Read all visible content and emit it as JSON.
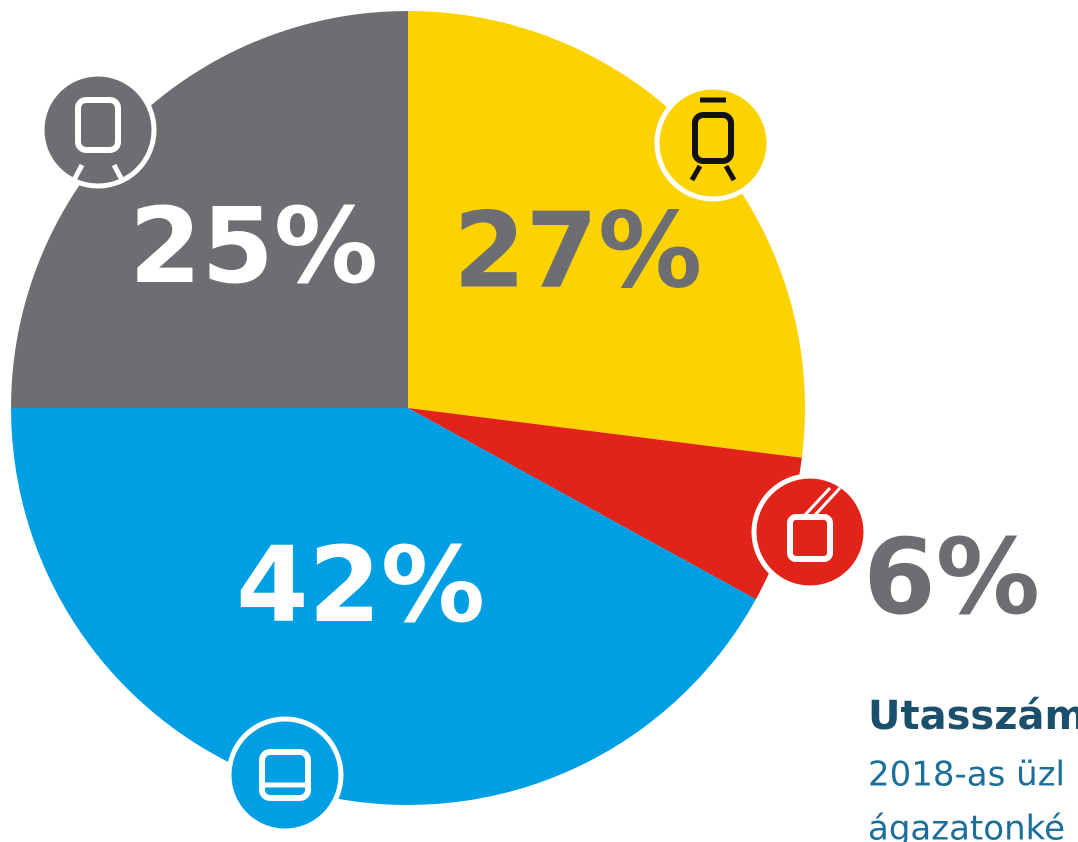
{
  "chart_data": {
    "type": "pie",
    "title": "Utasszám",
    "subtitle": [
      "2018-as üzl",
      "ágazatonké"
    ],
    "values": [
      27,
      6,
      42,
      25
    ],
    "value_labels": [
      "27%",
      "6%",
      "42%",
      "25%"
    ],
    "colors": [
      "#fcd200",
      "#e2231a",
      "#009fe3",
      "#6d6e71"
    ]
  }
}
